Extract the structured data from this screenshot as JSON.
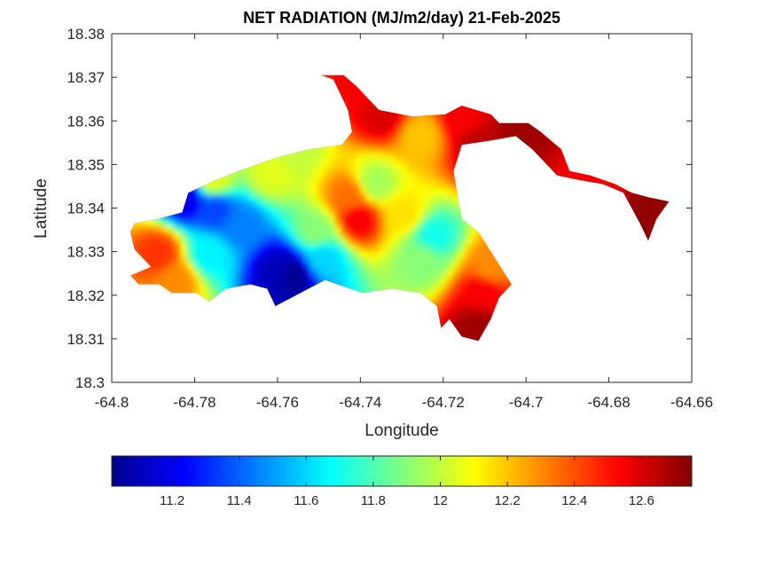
{
  "chart_data": {
    "type": "heatmap",
    "subtype": "filled-contour-map",
    "title": "NET RADIATION (MJ/m2/day) 21-Feb-2025",
    "xlabel": "Longitude",
    "ylabel": "Latitude",
    "xlim": [
      -64.8,
      -64.66
    ],
    "ylim": [
      18.3,
      18.38
    ],
    "xticks": [
      -64.8,
      -64.78,
      -64.76,
      -64.74,
      -64.72,
      -64.7,
      -64.68,
      -64.66
    ],
    "xtick_labels": [
      "-64.8",
      "-64.78",
      "-64.76",
      "-64.74",
      "-64.72",
      "-64.7",
      "-64.68",
      "-64.66"
    ],
    "yticks": [
      18.3,
      18.31,
      18.32,
      18.33,
      18.34,
      18.35,
      18.36,
      18.37,
      18.38
    ],
    "ytick_labels": [
      "18.3",
      "18.31",
      "18.32",
      "18.33",
      "18.34",
      "18.35",
      "18.36",
      "18.37",
      "18.38"
    ],
    "grid": false,
    "colormap": "jet",
    "colorbar": {
      "orientation": "horizontal",
      "placement": "bottom",
      "range": [
        11.02,
        12.75
      ],
      "ticks": [
        11.2,
        11.4,
        11.6,
        11.8,
        12,
        12.2,
        12.4,
        12.6
      ],
      "tick_labels": [
        "11.2",
        "11.4",
        "11.6",
        "11.8",
        "12",
        "12.2",
        "12.4",
        "12.6"
      ],
      "colors": [
        "#00008f",
        "#0000ff",
        "#0080ff",
        "#00ffff",
        "#80ff80",
        "#ffff00",
        "#ff8000",
        "#ff0000",
        "#800000"
      ]
    },
    "region_polygon": [
      [
        -64.7945,
        18.3365
      ],
      [
        -64.789,
        18.3375
      ],
      [
        -64.783,
        18.339
      ],
      [
        -64.7815,
        18.3435
      ],
      [
        -64.776,
        18.346
      ],
      [
        -64.768,
        18.349
      ],
      [
        -64.7605,
        18.3515
      ],
      [
        -64.7525,
        18.3535
      ],
      [
        -64.7445,
        18.3545
      ],
      [
        -64.742,
        18.3575
      ],
      [
        -64.743,
        18.3625
      ],
      [
        -64.7465,
        18.3695
      ],
      [
        -64.7495,
        18.3705
      ],
      [
        -64.744,
        18.3705
      ],
      [
        -64.741,
        18.368
      ],
      [
        -64.7355,
        18.3625
      ],
      [
        -64.7275,
        18.361
      ],
      [
        -64.7195,
        18.3615
      ],
      [
        -64.7155,
        18.3635
      ],
      [
        -64.7085,
        18.3615
      ],
      [
        -64.7065,
        18.3595
      ],
      [
        -64.6995,
        18.3595
      ],
      [
        -64.6965,
        18.3575
      ],
      [
        -64.6915,
        18.3535
      ],
      [
        -64.6895,
        18.3485
      ],
      [
        -64.6845,
        18.3475
      ],
      [
        -64.6785,
        18.3455
      ],
      [
        -64.6745,
        18.3435
      ],
      [
        -64.6705,
        18.3425
      ],
      [
        -64.6655,
        18.3415
      ],
      [
        -64.6685,
        18.3375
      ],
      [
        -64.6705,
        18.3325
      ],
      [
        -64.6725,
        18.3365
      ],
      [
        -64.6765,
        18.3435
      ],
      [
        -64.6815,
        18.3455
      ],
      [
        -64.6875,
        18.3465
      ],
      [
        -64.6925,
        18.3475
      ],
      [
        -64.6985,
        18.3535
      ],
      [
        -64.7025,
        18.3565
      ],
      [
        -64.7085,
        18.3555
      ],
      [
        -64.7155,
        18.3545
      ],
      [
        -64.7175,
        18.3485
      ],
      [
        -64.7165,
        18.3425
      ],
      [
        -64.7155,
        18.3375
      ],
      [
        -64.7115,
        18.3345
      ],
      [
        -64.7075,
        18.3285
      ],
      [
        -64.7035,
        18.3225
      ],
      [
        -64.7065,
        18.3195
      ],
      [
        -64.7085,
        18.3145
      ],
      [
        -64.7115,
        18.3095
      ],
      [
        -64.7155,
        18.3105
      ],
      [
        -64.7185,
        18.3145
      ],
      [
        -64.7205,
        18.3125
      ],
      [
        -64.7215,
        18.3175
      ],
      [
        -64.7255,
        18.3205
      ],
      [
        -64.7325,
        18.3215
      ],
      [
        -64.7395,
        18.3205
      ],
      [
        -64.7455,
        18.3225
      ],
      [
        -64.7485,
        18.3235
      ],
      [
        -64.7525,
        18.3215
      ],
      [
        -64.7565,
        18.3195
      ],
      [
        -64.7605,
        18.3175
      ],
      [
        -64.7625,
        18.3215
      ],
      [
        -64.7665,
        18.3225
      ],
      [
        -64.7725,
        18.3215
      ],
      [
        -64.7765,
        18.3185
      ],
      [
        -64.7795,
        18.3205
      ],
      [
        -64.7855,
        18.3205
      ],
      [
        -64.7885,
        18.3225
      ],
      [
        -64.7935,
        18.3225
      ],
      [
        -64.7955,
        18.3245
      ],
      [
        -64.7905,
        18.3265
      ],
      [
        -64.7945,
        18.3305
      ],
      [
        -64.7955,
        18.3345
      ]
    ],
    "contour_peaks": [
      {
        "lon": -64.7565,
        "lat": 18.3245,
        "value": 11.02
      },
      {
        "lon": -64.7595,
        "lat": 18.3255,
        "value": 11.1
      },
      {
        "lon": -64.782,
        "lat": 18.342,
        "value": 11.2
      },
      {
        "lon": -64.775,
        "lat": 18.3395,
        "value": 11.35
      },
      {
        "lon": -64.769,
        "lat": 18.336,
        "value": 11.45
      },
      {
        "lon": -64.7765,
        "lat": 18.3295,
        "value": 11.65
      },
      {
        "lon": -64.749,
        "lat": 18.3285,
        "value": 11.6
      },
      {
        "lon": -64.7505,
        "lat": 18.3345,
        "value": 11.9
      },
      {
        "lon": -64.7755,
        "lat": 18.3465,
        "value": 12.05
      },
      {
        "lon": -64.7615,
        "lat": 18.348,
        "value": 12.05
      },
      {
        "lon": -64.7365,
        "lat": 18.3455,
        "value": 11.95
      },
      {
        "lon": -64.7225,
        "lat": 18.3335,
        "value": 11.7
      },
      {
        "lon": -64.725,
        "lat": 18.3285,
        "value": 11.9
      },
      {
        "lon": -64.7295,
        "lat": 18.3385,
        "value": 12.15
      },
      {
        "lon": -64.7405,
        "lat": 18.3375,
        "value": 12.55
      },
      {
        "lon": -64.7425,
        "lat": 18.3425,
        "value": 12.35
      },
      {
        "lon": -64.7345,
        "lat": 18.3615,
        "value": 12.6
      },
      {
        "lon": -64.7385,
        "lat": 18.3685,
        "value": 12.55
      },
      {
        "lon": -64.7255,
        "lat": 18.3565,
        "value": 12.2
      },
      {
        "lon": -64.7115,
        "lat": 18.3545,
        "value": 12.65
      },
      {
        "lon": -64.7155,
        "lat": 18.3605,
        "value": 12.55
      },
      {
        "lon": -64.7015,
        "lat": 18.3575,
        "value": 12.7
      },
      {
        "lon": -64.6835,
        "lat": 18.3455,
        "value": 12.55
      },
      {
        "lon": -64.6695,
        "lat": 18.3395,
        "value": 12.72
      },
      {
        "lon": -64.7885,
        "lat": 18.3295,
        "value": 12.45
      },
      {
        "lon": -64.7845,
        "lat": 18.3235,
        "value": 12.3
      },
      {
        "lon": -64.7105,
        "lat": 18.3205,
        "value": 12.55
      },
      {
        "lon": -64.7115,
        "lat": 18.3125,
        "value": 12.7
      },
      {
        "lon": -64.7085,
        "lat": 18.3265,
        "value": 12.3
      },
      {
        "lon": -64.7555,
        "lat": 18.3535,
        "value": 12.0
      }
    ]
  }
}
